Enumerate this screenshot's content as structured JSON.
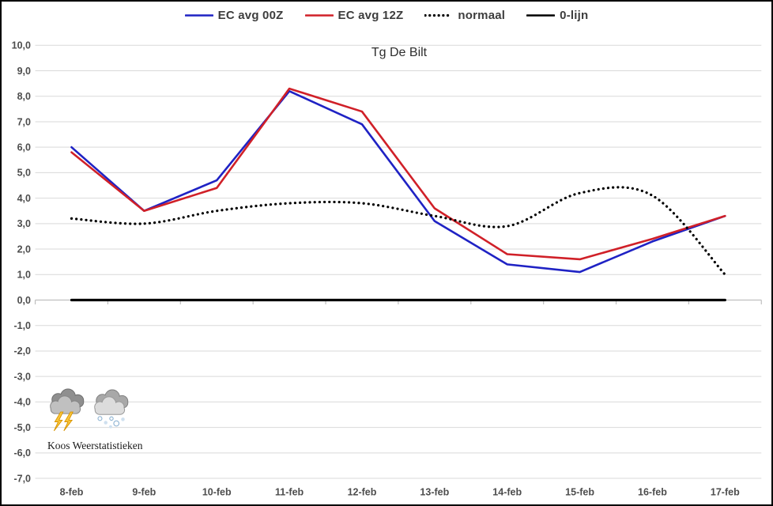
{
  "chart_data": {
    "type": "line",
    "title": "Tg De Bilt",
    "categories": [
      "8-feb",
      "9-feb",
      "10-feb",
      "11-feb",
      "12-feb",
      "13-feb",
      "14-feb",
      "15-feb",
      "16-feb",
      "17-feb"
    ],
    "series": [
      {
        "name": "EC avg 00Z",
        "color": "#1f22c4",
        "style": "solid",
        "width": 2.6,
        "smooth": false,
        "values": [
          6.0,
          3.5,
          4.7,
          8.2,
          6.9,
          3.1,
          1.4,
          1.1,
          2.3,
          3.3
        ]
      },
      {
        "name": "EC avg 12Z",
        "color": "#d02028",
        "style": "solid",
        "width": 2.6,
        "smooth": false,
        "values": [
          5.8,
          3.5,
          4.4,
          8.3,
          7.4,
          3.6,
          1.8,
          1.6,
          2.4,
          3.3
        ]
      },
      {
        "name": "normaal",
        "color": "#000000",
        "style": "dotted",
        "width": 3.2,
        "smooth": true,
        "values": [
          3.2,
          3.0,
          3.5,
          3.8,
          3.8,
          3.3,
          2.9,
          4.2,
          4.1,
          1.0
        ]
      },
      {
        "name": "0-lijn",
        "color": "#000000",
        "style": "solid",
        "width": 3.2,
        "smooth": false,
        "values": [
          0,
          0,
          0,
          0,
          0,
          0,
          0,
          0,
          0,
          0
        ]
      }
    ],
    "ylim": [
      -7,
      10
    ],
    "ytick_step": 1,
    "y_tick_labels": [
      "10,0",
      "9,0",
      "8,0",
      "7,0",
      "6,0",
      "5,0",
      "4,0",
      "3,0",
      "2,0",
      "1,0",
      "0,0",
      "-1,0",
      "-2,0",
      "-3,0",
      "-4,0",
      "-5,0",
      "-6,0",
      "-7,0"
    ],
    "grid": "horizontal",
    "legend_position": "top",
    "colors": {
      "gridline": "#d9d9d9",
      "axis_line": "#bfbfbf",
      "axis_text": "#4d4d4d",
      "legend_text": "#3d3d3d",
      "title_text": "#2e2e2e"
    }
  },
  "branding": {
    "credit": "Koos Weerstatistieken",
    "icons": [
      {
        "name": "thunderstorm-icon"
      },
      {
        "name": "snow-cloud-icon"
      }
    ]
  }
}
